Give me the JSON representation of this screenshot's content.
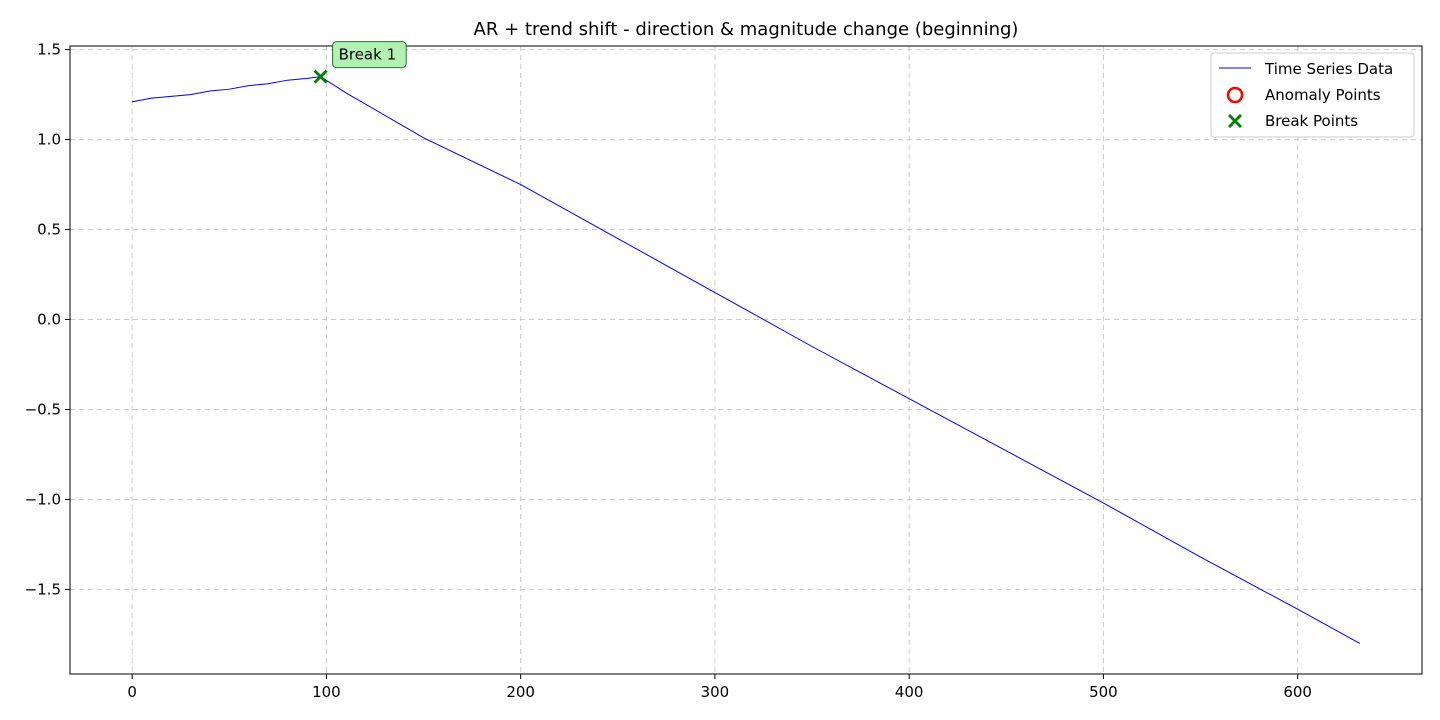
{
  "chart_data": {
    "type": "line",
    "title": "AR + trend shift - direction & magnitude change (beginning)",
    "xlabel": "",
    "ylabel": "",
    "xlim": [
      -32,
      664
    ],
    "ylim": [
      -1.97,
      1.52
    ],
    "x_ticks": [
      0,
      100,
      200,
      300,
      400,
      500,
      600
    ],
    "y_ticks": [
      1.5,
      1.0,
      0.5,
      0.0,
      -0.5,
      -1.0,
      -1.5
    ],
    "x_tick_labels": [
      "0",
      "100",
      "200",
      "300",
      "400",
      "500",
      "600"
    ],
    "y_tick_labels": [
      "1.5",
      "1.0",
      "0.5",
      "0.0",
      "−0.5",
      "−1.0",
      "−1.5"
    ],
    "grid": true,
    "grid_style": "dashed",
    "legend_position": "top-right",
    "series": [
      {
        "name": "Time Series Data",
        "color": "#0000ff",
        "kind": "line",
        "x": [
          0,
          10,
          20,
          30,
          40,
          50,
          60,
          70,
          80,
          90,
          97,
          110,
          150,
          200,
          250,
          300,
          350,
          400,
          450,
          500,
          550,
          600,
          632
        ],
        "y": [
          1.21,
          1.23,
          1.24,
          1.25,
          1.27,
          1.28,
          1.3,
          1.31,
          1.33,
          1.34,
          1.35,
          1.26,
          1.01,
          0.75,
          0.45,
          0.15,
          -0.15,
          -0.44,
          -0.73,
          -1.02,
          -1.32,
          -1.61,
          -1.8
        ]
      },
      {
        "name": "Anomaly Points",
        "color": "#ff0000",
        "kind": "scatter-circle",
        "x": [],
        "y": []
      },
      {
        "name": "Break Points",
        "color": "#008000",
        "kind": "scatter-x",
        "x": [
          97
        ],
        "y": [
          1.35
        ]
      }
    ],
    "annotations": [
      {
        "text": "Break 1",
        "x": 97,
        "y": 1.35,
        "bg": "#b3f0b3",
        "border": "#2f6b2f"
      }
    ]
  }
}
